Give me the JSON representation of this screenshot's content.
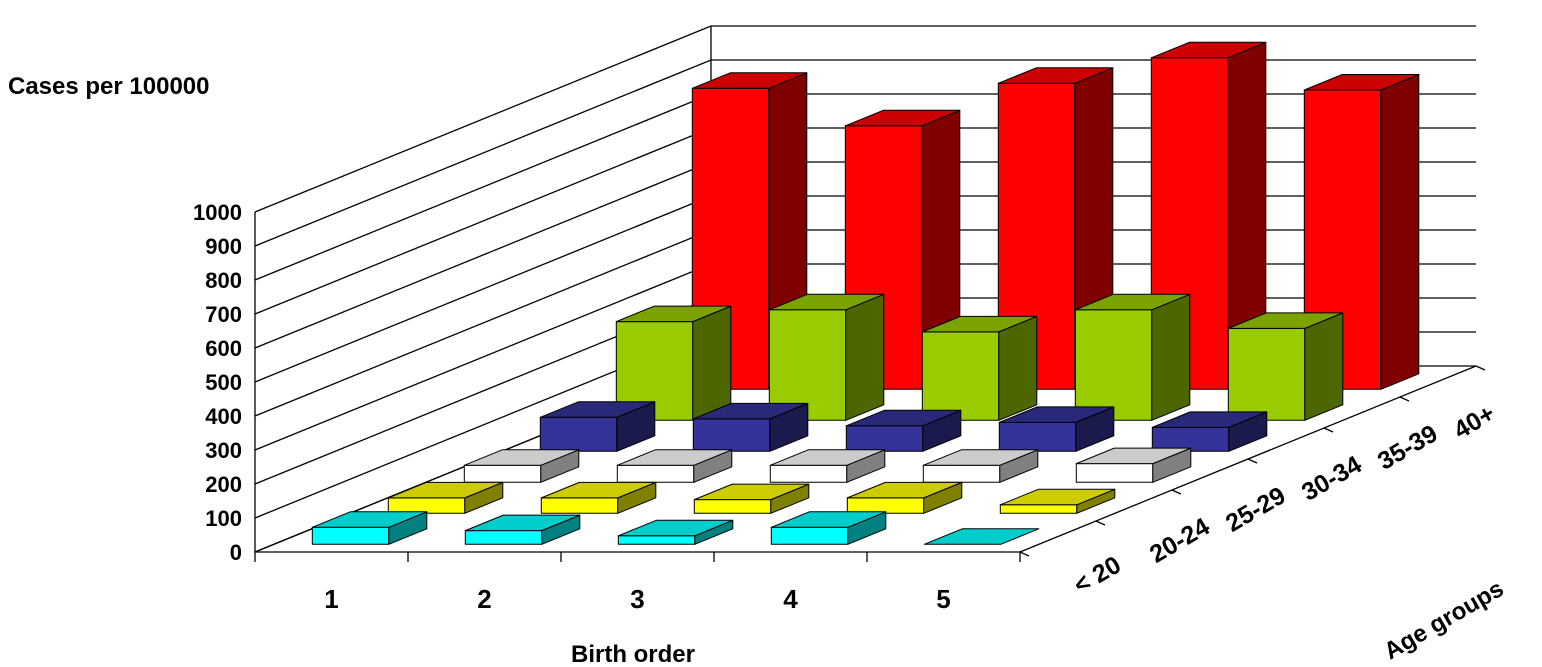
{
  "chart_data": {
    "type": "bar3d",
    "ylabel": "Cases per 100000",
    "xlabel": "Birth order",
    "zlabel": "Age groups",
    "ylim": [
      0,
      1000
    ],
    "yticks": [
      "0",
      "100",
      "200",
      "300",
      "400",
      "500",
      "600",
      "700",
      "800",
      "900",
      "1000"
    ],
    "categories": [
      "1",
      "2",
      "3",
      "4",
      "5"
    ],
    "grid": true,
    "series": [
      {
        "name": "< 20",
        "color": "#00FFFF",
        "values": [
          50,
          40,
          25,
          50,
          0
        ]
      },
      {
        "name": "20-24",
        "color": "#FFFF00",
        "values": [
          45,
          45,
          40,
          45,
          25
        ]
      },
      {
        "name": "25-29",
        "color": "#FFFFFF",
        "values": [
          50,
          50,
          50,
          50,
          55
        ]
      },
      {
        "name": "30-34",
        "color": "#333399",
        "values": [
          100,
          95,
          75,
          85,
          70
        ]
      },
      {
        "name": "35-39",
        "color": "#99CC00",
        "values": [
          290,
          325,
          260,
          325,
          270
        ]
      },
      {
        "name": "40+",
        "color": "#FF0000",
        "values": [
          885,
          775,
          900,
          975,
          880
        ]
      }
    ]
  }
}
